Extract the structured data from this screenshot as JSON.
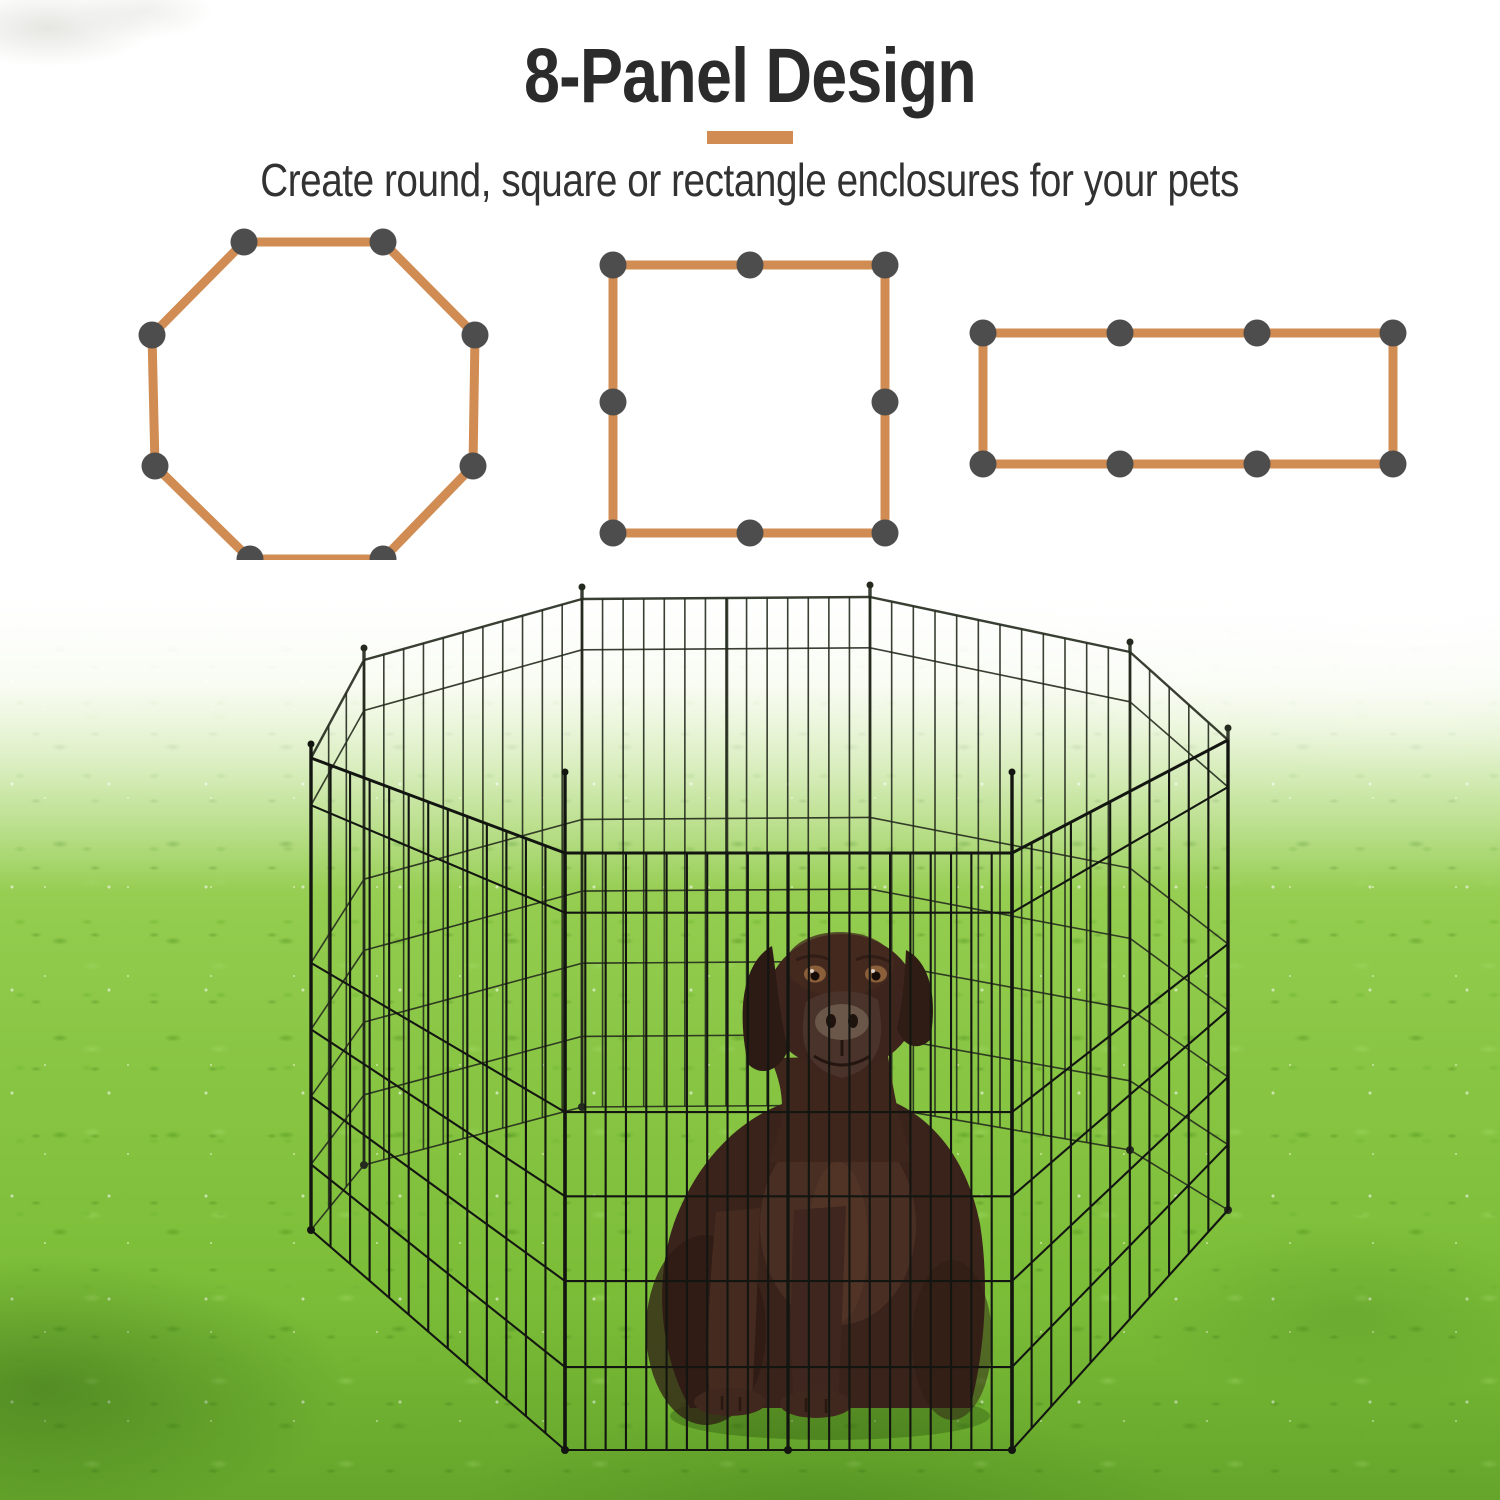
{
  "header": {
    "title": "8-Panel Design",
    "subtitle": "Create round, square or rectangle enclosures for your pets"
  },
  "theme": {
    "accent_orange": "#d08c52",
    "connector_dot_gray": "#4d4d4d",
    "title_color": "#2b2b2b",
    "subtitle_color": "#323232",
    "pen_wire_front_color": "#131511",
    "pen_wire_back_color": "#242a1d",
    "dog_fur_color": "#3a231b",
    "grass_base_color": "#8cc63f"
  },
  "diagrams": {
    "configurations": [
      {
        "id": "octagon",
        "label": "round",
        "panels": 8,
        "connectors": 8
      },
      {
        "id": "square",
        "label": "square",
        "panels": 8,
        "connectors": 8
      },
      {
        "id": "rectangle",
        "label": "rectangle",
        "panels": 8,
        "connectors": 8
      }
    ]
  },
  "photo": {
    "subject": "Chocolate Labrador sitting inside an 8-panel black wire playpen on green grass"
  }
}
